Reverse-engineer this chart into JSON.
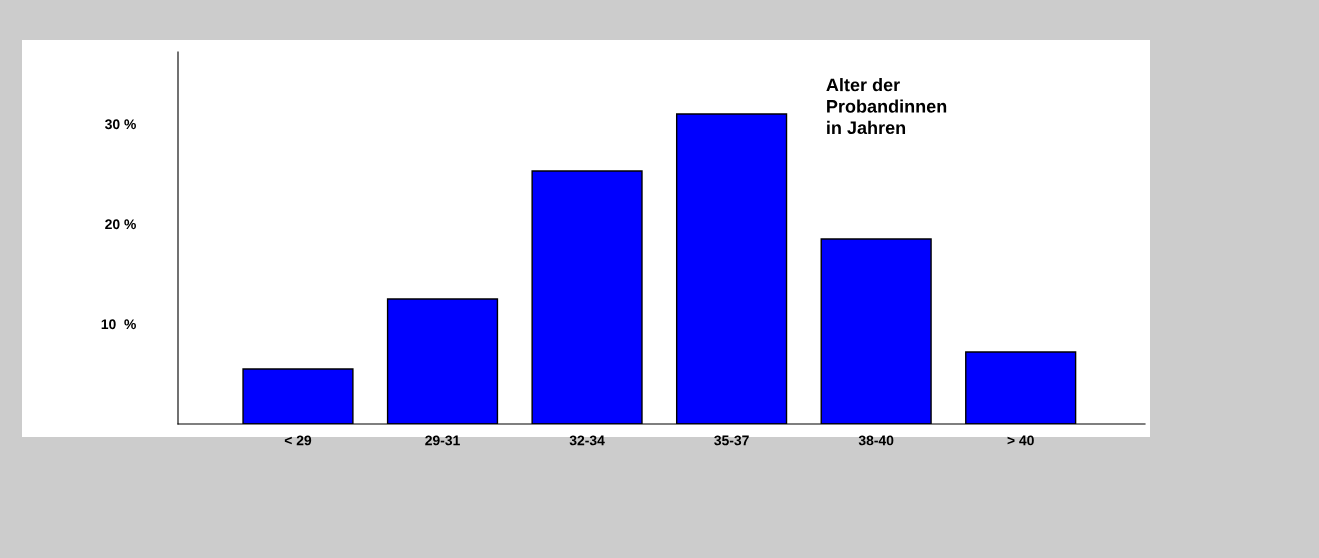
{
  "chart_data": {
    "type": "bar",
    "title": "Alter der\nProbandinnen\nin Jahren",
    "categories": [
      "< 29",
      "29-31",
      "32-34",
      "35-37",
      "38-40",
      "> 40"
    ],
    "values": [
      5.5,
      12.5,
      25.3,
      31.0,
      18.5,
      7.2
    ],
    "color": "#0000ff",
    "ylim": [
      0,
      37.2
    ],
    "yticks": [
      {
        "value": 10,
        "label": "10  %"
      },
      {
        "value": 20,
        "label": "20 %"
      },
      {
        "value": 30,
        "label": "30 %"
      }
    ],
    "grid": false
  }
}
